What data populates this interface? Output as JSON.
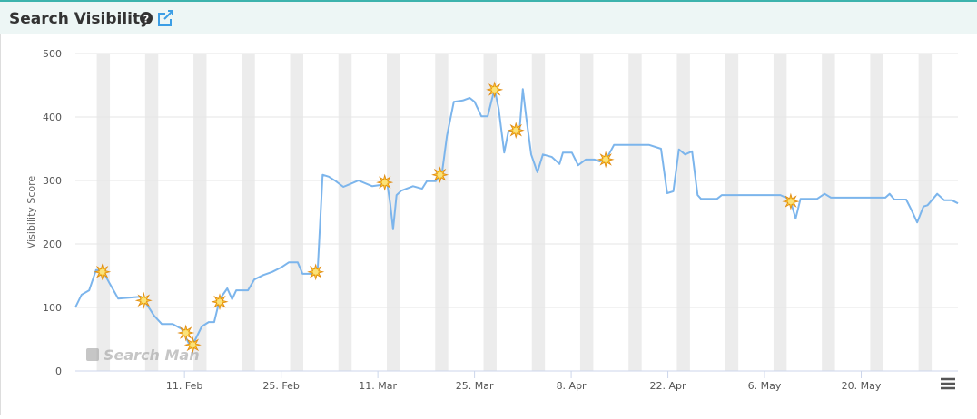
{
  "chart_data": {
    "type": "line",
    "title": "Search Visibility",
    "ylabel": "Visibility Score",
    "watermark": "Search Man",
    "color": "#7cb5ec",
    "grid": true,
    "x": [
      26.2,
      27.1,
      28.2,
      29.2,
      30.1,
      31.1,
      32.4,
      35.7,
      36.3,
      37.6,
      38.7,
      40.3,
      41.6,
      42.2,
      42.9,
      43.6,
      44.5,
      45.5,
      46.3,
      47.1,
      48.2,
      48.9,
      49.5,
      51.2,
      52.1,
      53.4,
      54.7,
      56.0,
      57.1,
      58.4,
      59.1,
      60.6,
      61.3,
      62.0,
      62.9,
      63.9,
      65.0,
      65.9,
      67.2,
      69.2,
      70.5,
      71.3,
      71.8,
      72.2,
      72.7,
      73.4,
      75.1,
      76.4,
      77.1,
      78.4,
      79.3,
      80.0,
      81.0,
      82.3,
      83.3,
      84.0,
      85.0,
      85.9,
      86.5,
      86.9,
      87.5,
      88.3,
      88.9,
      89.7,
      90.5,
      91.0,
      91.5,
      92.2,
      93.1,
      93.9,
      95.2,
      96.3,
      96.8,
      98.1,
      99.0,
      100.1,
      101.4,
      102.1,
      103.1,
      104.2,
      109.3,
      111.0,
      111.9,
      112.8,
      113.6,
      114.5,
      115.5,
      116.3,
      116.8,
      119.1,
      119.8,
      128.3,
      129.7,
      130.5,
      131.2,
      133.6,
      134.7,
      135.6,
      143.5,
      144.1,
      144.8,
      146.5,
      147.3,
      148.1,
      149.0,
      149.6,
      151.0,
      152.0,
      153.1,
      154.0
    ],
    "values": [
      100,
      120,
      127,
      159,
      159,
      139,
      114,
      117,
      109,
      87,
      74,
      74,
      66,
      53,
      37,
      50,
      70,
      77,
      77,
      113,
      130,
      113,
      127,
      127,
      144,
      151,
      156,
      163,
      171,
      171,
      153,
      153,
      163,
      309,
      306,
      299,
      290,
      294,
      300,
      291,
      293,
      299,
      263,
      223,
      277,
      284,
      291,
      287,
      299,
      299,
      313,
      370,
      424,
      426,
      430,
      424,
      401,
      401,
      427,
      444,
      413,
      344,
      377,
      379,
      376,
      444,
      399,
      341,
      313,
      341,
      337,
      326,
      344,
      344,
      324,
      333,
      333,
      330,
      334,
      356,
      356,
      350,
      280,
      283,
      349,
      341,
      346,
      277,
      271,
      271,
      277,
      277,
      270,
      240,
      271,
      271,
      279,
      273,
      273,
      279,
      270,
      270,
      253,
      234,
      259,
      261,
      279,
      269,
      269,
      264
    ],
    "events": {
      "x": [
        30.1,
        36.1,
        42.2,
        43.2,
        47.1,
        61.0,
        71.0,
        79.0,
        86.9,
        90.0,
        103.0,
        129.8
      ],
      "values": [
        156,
        111,
        60,
        41,
        109,
        156,
        297,
        309,
        443,
        379,
        333,
        267
      ]
    },
    "xlim": [
      26.2,
      154.0
    ],
    "xticks": [
      {
        "value": 42,
        "label": "11. Feb"
      },
      {
        "value": 56,
        "label": "25. Feb"
      },
      {
        "value": 70,
        "label": "11. Mar"
      },
      {
        "value": 84,
        "label": "25. Mar"
      },
      {
        "value": 98,
        "label": "8. Apr"
      },
      {
        "value": 112,
        "label": "22. Apr"
      },
      {
        "value": 126,
        "label": "6. May"
      },
      {
        "value": 140,
        "label": "20. May"
      }
    ],
    "ylim": [
      0,
      500
    ],
    "yticks": [
      0,
      100,
      200,
      300,
      400,
      500
    ]
  }
}
